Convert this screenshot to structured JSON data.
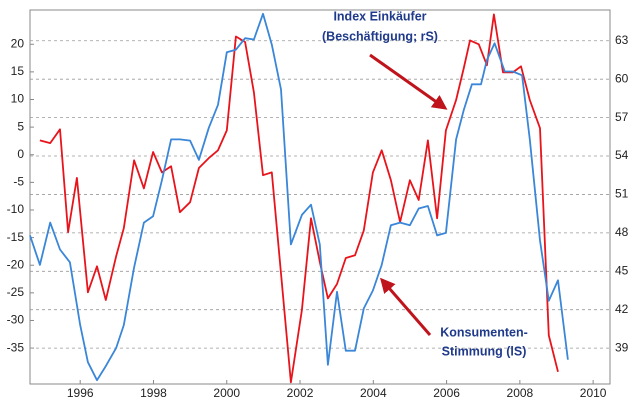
{
  "chart_data": {
    "type": "line",
    "xlim": [
      1994.63,
      2010.46
    ],
    "xticks": [
      1996,
      1998,
      2000,
      2002,
      2004,
      2006,
      2008,
      2010
    ],
    "ylim": [
      -41.5,
      26.2
    ],
    "yticks": [
      20,
      15,
      10,
      5,
      0,
      -5,
      -10,
      -15,
      -20,
      -25,
      -30,
      -35
    ],
    "y2lim": [
      36.2,
      65.4
    ],
    "y2ticks": [
      63,
      60,
      57,
      54,
      51,
      48,
      45,
      42,
      39
    ],
    "grid": true,
    "annotations": [
      "Index Einkäufer",
      "(Beschäftigung; rS)",
      "Konsumenten-",
      "Stimmung (lS)"
    ],
    "series": [
      {
        "color": "#e8141c",
        "x": [
          1994.9,
          1995.18,
          1995.45,
          1995.67,
          1995.91,
          1996.21,
          1996.46,
          1996.7,
          1996.98,
          1997.19,
          1997.47,
          1997.74,
          1997.99,
          1998.23,
          1998.48,
          1998.72,
          1999.0,
          1999.24,
          1999.51,
          1999.76,
          2000.0,
          2000.25,
          2000.5,
          2000.74,
          2000.99,
          2001.23,
          2001.75,
          2002.05,
          2002.3,
          2002.54,
          2002.76,
          2003.01,
          2003.25,
          2003.5,
          2003.74,
          2003.99,
          2004.23,
          2004.48,
          2004.73,
          2005.0,
          2005.24,
          2005.49,
          2005.74,
          2005.98,
          2006.26,
          2006.47,
          2006.64,
          2006.88,
          2007.1,
          2007.29,
          2007.54,
          2007.81,
          2008.03,
          2008.27,
          2008.55,
          2008.79,
          2009.04
        ],
        "values": [
          2.6,
          2.1,
          4.6,
          -14.0,
          -4.2,
          -24.9,
          -20.2,
          -26.3,
          -18.4,
          -13.3,
          -1.0,
          -6.1,
          0.5,
          -3.2,
          -2.1,
          -10.4,
          -8.6,
          -2.4,
          -0.6,
          0.8,
          4.4,
          21.4,
          20.4,
          11.3,
          -3.7,
          -3.2,
          -41.2,
          -28.1,
          -11.5,
          -19.4,
          -26.0,
          -23.4,
          -18.7,
          -18.2,
          -13.7,
          -3.2,
          0.8,
          -4.6,
          -12.2,
          -4.6,
          -8.2,
          2.6,
          -11.5,
          4.4,
          9.9,
          15.7,
          20.7,
          20.0,
          16.2,
          25.4,
          14.9,
          14.9,
          16.0,
          9.9,
          4.8,
          -32.7,
          -39.3
        ]
      },
      {
        "color": "#3a86d8",
        "axis": "y2",
        "x": [
          1994.63,
          1994.9,
          1995.18,
          1995.45,
          1995.72,
          1996.0,
          1996.21,
          1996.46,
          1996.7,
          1996.98,
          1997.19,
          1997.47,
          1997.74,
          1997.99,
          1998.23,
          1998.48,
          1998.72,
          1999.0,
          1999.24,
          1999.51,
          1999.76,
          2000.0,
          2000.25,
          2000.5,
          2000.74,
          2000.99,
          2001.23,
          2001.48,
          2001.75,
          2002.05,
          2002.3,
          2002.54,
          2002.76,
          2003.01,
          2003.25,
          2003.5,
          2003.74,
          2003.99,
          2004.23,
          2004.48,
          2004.73,
          2005.0,
          2005.24,
          2005.49,
          2005.74,
          2005.98,
          2006.26,
          2006.47,
          2006.69,
          2006.94,
          2007.1,
          2007.31,
          2007.59,
          2007.81,
          2008.06,
          2008.27,
          2008.55,
          2008.79,
          2009.04,
          2009.31
        ],
        "values": [
          47.8,
          45.5,
          48.8,
          46.7,
          45.7,
          40.8,
          37.9,
          36.5,
          37.6,
          39.0,
          40.8,
          45.3,
          48.8,
          49.3,
          52.1,
          55.3,
          55.3,
          55.2,
          53.7,
          56.2,
          58.0,
          62.1,
          62.3,
          63.2,
          63.1,
          65.1,
          62.7,
          59.2,
          47.1,
          49.4,
          50.2,
          47.1,
          37.7,
          43.4,
          38.8,
          38.8,
          42.1,
          43.5,
          45.5,
          48.6,
          48.8,
          48.6,
          49.9,
          50.1,
          47.8,
          48.0,
          55.3,
          57.6,
          59.6,
          59.6,
          61.5,
          62.8,
          60.6,
          60.6,
          60.3,
          55.3,
          47.4,
          42.7,
          44.3,
          38.1
        ]
      }
    ]
  }
}
